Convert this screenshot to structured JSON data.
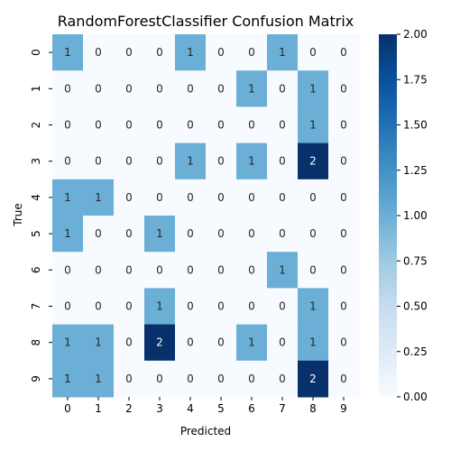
{
  "chart_data": {
    "type": "heatmap",
    "title": "RandomForestClassifier Confusion Matrix",
    "xlabel": "Predicted",
    "ylabel": "True",
    "x_ticks": [
      "0",
      "1",
      "2",
      "3",
      "4",
      "5",
      "6",
      "7",
      "8",
      "9"
    ],
    "y_ticks": [
      "0",
      "1",
      "2",
      "3",
      "4",
      "5",
      "6",
      "7",
      "8",
      "9"
    ],
    "colormap": "Blues",
    "vmin": 0,
    "vmax": 2,
    "colorbar_ticks": [
      "0.00",
      "0.25",
      "0.50",
      "0.75",
      "1.00",
      "1.25",
      "1.50",
      "1.75",
      "2.00"
    ],
    "colorbar_values": [
      0,
      0.25,
      0.5,
      0.75,
      1.0,
      1.25,
      1.5,
      1.75,
      2.0
    ],
    "matrix": [
      [
        1,
        0,
        0,
        0,
        1,
        0,
        0,
        1,
        0,
        0
      ],
      [
        0,
        0,
        0,
        0,
        0,
        0,
        1,
        0,
        1,
        0
      ],
      [
        0,
        0,
        0,
        0,
        0,
        0,
        0,
        0,
        1,
        0
      ],
      [
        0,
        0,
        0,
        0,
        1,
        0,
        1,
        0,
        2,
        0
      ],
      [
        1,
        1,
        0,
        0,
        0,
        0,
        0,
        0,
        0,
        0
      ],
      [
        1,
        0,
        0,
        1,
        0,
        0,
        0,
        0,
        0,
        0
      ],
      [
        0,
        0,
        0,
        0,
        0,
        0,
        0,
        1,
        0,
        0
      ],
      [
        0,
        0,
        0,
        1,
        0,
        0,
        0,
        0,
        1,
        0
      ],
      [
        1,
        1,
        0,
        2,
        0,
        0,
        1,
        0,
        1,
        0
      ],
      [
        1,
        1,
        0,
        0,
        0,
        0,
        0,
        0,
        2,
        0
      ]
    ],
    "colors": {
      "low": "#f7fbff",
      "mid": "#6aaed6",
      "high": "#08306b"
    }
  }
}
